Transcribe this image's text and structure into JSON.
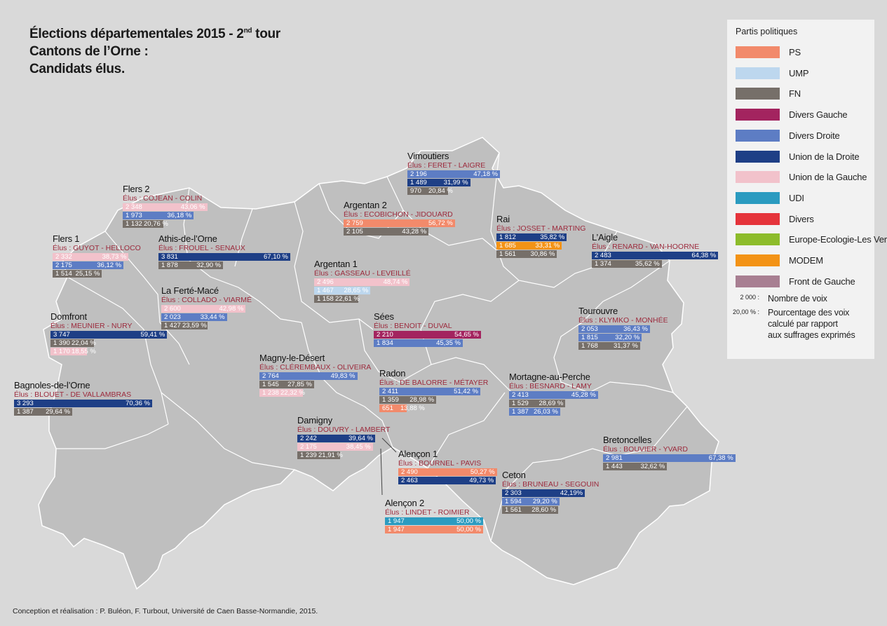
{
  "title": {
    "line1_pre": "Élections départementales 2015 - 2",
    "line1_sup": "nd",
    "line1_post": " tour",
    "line2": "Cantons de l’Orne :",
    "line3": "Candidats élus."
  },
  "credits": "Conception et réalisation : P. Buléon, F. Turbout, Université de Caen Basse-Normandie, 2015.",
  "legend": {
    "title": "Partis politiques",
    "parties": [
      {
        "key": "PS",
        "label": "PS",
        "color": "#f28a6b"
      },
      {
        "key": "UMP",
        "label": "UMP",
        "color": "#bdd7ee"
      },
      {
        "key": "FN",
        "label": "FN",
        "color": "#766f69"
      },
      {
        "key": "DVG",
        "label": "Divers Gauche",
        "color": "#a3245f"
      },
      {
        "key": "DVD",
        "label": "Divers Droite",
        "color": "#5d7dc4"
      },
      {
        "key": "UD",
        "label": "Union de la Droite",
        "color": "#1e3f86"
      },
      {
        "key": "UG",
        "label": "Union de la Gauche",
        "color": "#f2c2cb"
      },
      {
        "key": "UDI",
        "label": "UDI",
        "color": "#2b9bc0"
      },
      {
        "key": "DIV",
        "label": "Divers",
        "color": "#e5343b"
      },
      {
        "key": "EELV",
        "label": "Europe-Ecologie-Les Verts",
        "color": "#8dbc2b"
      },
      {
        "key": "MODEM",
        "label": "MODEM",
        "color": "#f39316"
      },
      {
        "key": "FG",
        "label": "Front de Gauche",
        "color": "#a87f92"
      }
    ],
    "votes_key": "2 000 :",
    "votes_label": "Nombre de voix",
    "pct_key": "20,00 % :",
    "pct_label_1": "Pourcentage des voix",
    "pct_label_2": "calculé par rapport",
    "pct_label_3": "aux suffrages exprimés"
  },
  "cantons": [
    {
      "id": "vimoutiers",
      "name": "Vimoutiers",
      "elus": "Élus : FERET - LAIGRE",
      "rows": [
        {
          "votes": "2 196",
          "pct": "47,18 %",
          "value": 47.18,
          "party": "DVD"
        },
        {
          "votes": "1 489",
          "pct": "31,99 %",
          "value": 31.99,
          "party": "UD"
        },
        {
          "votes": "970",
          "pct": "20,84 %",
          "value": 20.84,
          "party": "FN"
        }
      ]
    },
    {
      "id": "argentan-2",
      "name": "Argentan 2",
      "elus": "Élus : ECOBICHON - JIDOUARD",
      "rows": [
        {
          "votes": "2 759",
          "pct": "56,72 %",
          "value": 56.72,
          "party": "PS"
        },
        {
          "votes": "2 105",
          "pct": "43,28 %",
          "value": 43.28,
          "party": "FN"
        }
      ]
    },
    {
      "id": "flers-2",
      "name": "Flers 2",
      "elus": "Élus : COJEAN - COLIN",
      "rows": [
        {
          "votes": "2 348",
          "pct": "43,06 %",
          "value": 43.06,
          "party": "UG"
        },
        {
          "votes": "1 973",
          "pct": "36,18 %",
          "value": 36.18,
          "party": "DVD"
        },
        {
          "votes": "1 132",
          "pct": "20,76 %",
          "value": 20.76,
          "party": "FN"
        }
      ]
    },
    {
      "id": "rai",
      "name": "Rai",
      "elus": "Élus : JOSSET - MARTING",
      "rows": [
        {
          "votes": "1 812",
          "pct": "35,82 %",
          "value": 35.82,
          "party": "UD"
        },
        {
          "votes": "1 685",
          "pct": "33,31 %",
          "value": 33.31,
          "party": "MODEM"
        },
        {
          "votes": "1 561",
          "pct": "30,86 %",
          "value": 30.86,
          "party": "FN"
        }
      ]
    },
    {
      "id": "laigle",
      "name": "L’Aigle",
      "elus": "Élus : RENARD - VAN-HOORNE",
      "rows": [
        {
          "votes": "2 483",
          "pct": "64,38 %",
          "value": 64.38,
          "party": "UD"
        },
        {
          "votes": "1 374",
          "pct": "35,62 %",
          "value": 35.62,
          "party": "FN"
        }
      ]
    },
    {
      "id": "flers-1",
      "name": "Flers 1",
      "elus": "Élus : GUYOT - HELLOCO",
      "rows": [
        {
          "votes": "2 332",
          "pct": "38,73 %",
          "value": 38.73,
          "party": "UG"
        },
        {
          "votes": "2 175",
          "pct": "36,12 %",
          "value": 36.12,
          "party": "DVD"
        },
        {
          "votes": "1 514",
          "pct": "25,15 %",
          "value": 25.15,
          "party": "FN"
        }
      ]
    },
    {
      "id": "athis",
      "name": "Athis-de-l’Orne",
      "elus": "Élus : FROUEL - SENAUX",
      "rows": [
        {
          "votes": "3 831",
          "pct": "67,10 %",
          "value": 67.1,
          "party": "UD"
        },
        {
          "votes": "1 878",
          "pct": "32,90 %",
          "value": 32.9,
          "party": "FN"
        }
      ]
    },
    {
      "id": "argentan-1",
      "name": "Argentan 1",
      "elus": "Élus : GASSEAU - LEVEILLÉ",
      "rows": [
        {
          "votes": "2 496",
          "pct": "48,74 %",
          "value": 48.74,
          "party": "UG"
        },
        {
          "votes": "1 467",
          "pct": "28,65 %",
          "value": 28.65,
          "party": "UMP"
        },
        {
          "votes": "1 158",
          "pct": "22,61 %",
          "value": 22.61,
          "party": "FN"
        }
      ]
    },
    {
      "id": "ferte-mace",
      "name": "La Ferté-Macé",
      "elus": "Élus : COLLADO - VIARMÉ",
      "rows": [
        {
          "votes": "2 600",
          "pct": "42,98 %",
          "value": 42.98,
          "party": "UG"
        },
        {
          "votes": "2 023",
          "pct": "33,44 %",
          "value": 33.44,
          "party": "DVD"
        },
        {
          "votes": "1 427",
          "pct": "23,59 %",
          "value": 23.59,
          "party": "FN"
        }
      ]
    },
    {
      "id": "tourouvre",
      "name": "Tourouvre",
      "elus": "Élus : KLYMKO - MONHÉE",
      "rows": [
        {
          "votes": "2 053",
          "pct": "36,43 %",
          "value": 36.43,
          "party": "DVD"
        },
        {
          "votes": "1 815",
          "pct": "32,20 %",
          "value": 32.2,
          "party": "DVD"
        },
        {
          "votes": "1 768",
          "pct": "31,37 %",
          "value": 31.37,
          "party": "FN"
        }
      ]
    },
    {
      "id": "domfront",
      "name": "Domfront",
      "elus": "Élus : MEUNIER - NURY",
      "rows": [
        {
          "votes": "3 747",
          "pct": "59,41 %",
          "value": 59.41,
          "party": "UD"
        },
        {
          "votes": "1 390",
          "pct": "22,04 %",
          "value": 22.04,
          "party": "FN"
        },
        {
          "votes": "1 170",
          "pct": "18,55 %",
          "value": 18.55,
          "party": "UG"
        }
      ]
    },
    {
      "id": "sees",
      "name": "Sées",
      "elus": "Élus : BENOIT - DUVAL",
      "rows": [
        {
          "votes": "2 210",
          "pct": "54,65 %",
          "value": 54.65,
          "party": "DVG"
        },
        {
          "votes": "1 834",
          "pct": "45,35 %",
          "value": 45.35,
          "party": "DVD"
        }
      ]
    },
    {
      "id": "magny",
      "name": "Magny-le-Désert",
      "elus": "Élus : CLÉREMBAUX - OLIVEIRA",
      "rows": [
        {
          "votes": "2 764",
          "pct": "49,83 %",
          "value": 49.83,
          "party": "DVD"
        },
        {
          "votes": "1 545",
          "pct": "27,85 %",
          "value": 27.85,
          "party": "FN"
        },
        {
          "votes": "1 238",
          "pct": "22,32 %",
          "value": 22.32,
          "party": "UG"
        }
      ]
    },
    {
      "id": "radon",
      "name": "Radon",
      "elus": "Élus : DE BALORRE - MÉTAYER",
      "rows": [
        {
          "votes": "2 411",
          "pct": "51,42 %",
          "value": 51.42,
          "party": "DVD"
        },
        {
          "votes": "1 359",
          "pct": "28,98 %",
          "value": 28.98,
          "party": "FN"
        },
        {
          "votes": "651",
          "pct": "13,88 %",
          "value": 13.88,
          "party": "PS"
        }
      ]
    },
    {
      "id": "mortagne",
      "name": "Mortagne-au-Perche",
      "elus": "Élus : BESNARD - LAMY",
      "rows": [
        {
          "votes": "2 413",
          "pct": "45,28 %",
          "value": 45.28,
          "party": "DVD"
        },
        {
          "votes": "1 529",
          "pct": "28,69 %",
          "value": 28.69,
          "party": "FN"
        },
        {
          "votes": "1 387",
          "pct": "26,03 %",
          "value": 26.03,
          "party": "DVD"
        }
      ]
    },
    {
      "id": "bagnoles",
      "name": "Bagnoles-de-l’Orne",
      "elus": "Élus : BLOUET - DE VALLAMBRAS",
      "rows": [
        {
          "votes": "3 293",
          "pct": "70,36 %",
          "value": 70.36,
          "party": "UD"
        },
        {
          "votes": "1 387",
          "pct": "29,64 %",
          "value": 29.64,
          "party": "FN"
        }
      ]
    },
    {
      "id": "damigny",
      "name": "Damigny",
      "elus": "Élus : DOUVRY - LAMBERT",
      "rows": [
        {
          "votes": "2 242",
          "pct": "39,64 %",
          "value": 39.64,
          "party": "UD"
        },
        {
          "votes": "2 175",
          "pct": "38,45 %",
          "value": 38.45,
          "party": "UG"
        },
        {
          "votes": "1 239",
          "pct": "21,91 %",
          "value": 21.91,
          "party": "FN"
        }
      ]
    },
    {
      "id": "bretoncelles",
      "name": "Bretoncelles",
      "elus": "Élus : BOUVIER - YVARD",
      "rows": [
        {
          "votes": "2 981",
          "pct": "67,38 %",
          "value": 67.38,
          "party": "DVD"
        },
        {
          "votes": "1 443",
          "pct": "32,62 %",
          "value": 32.62,
          "party": "FN"
        }
      ]
    },
    {
      "id": "alencon-1",
      "name": "Alençon 1",
      "elus": "Élus : BOURNEL - PAVIS",
      "rows": [
        {
          "votes": "2 490",
          "pct": "50,27 %",
          "value": 50.27,
          "party": "PS"
        },
        {
          "votes": "2 463",
          "pct": "49,73 %",
          "value": 49.73,
          "party": "UD"
        }
      ]
    },
    {
      "id": "ceton",
      "name": "Ceton",
      "elus": "Élus : BRUNEAU - SEGOUIN",
      "rows": [
        {
          "votes": "2 303",
          "pct": "42,19%",
          "value": 42.19,
          "party": "UD"
        },
        {
          "votes": "1 594",
          "pct": "29,20 %",
          "value": 29.2,
          "party": "DVD"
        },
        {
          "votes": "1 561",
          "pct": "28,60 %",
          "value": 28.6,
          "party": "FN"
        }
      ]
    },
    {
      "id": "alencon-2",
      "name": "Alençon 2",
      "elus": "Élus : LINDET - ROIMIER",
      "rows": [
        {
          "votes": "1 947",
          "pct": "50,00 %",
          "value": 50.0,
          "party": "UDI"
        },
        {
          "votes": "1 947",
          "pct": "50,00 %",
          "value": 50.0,
          "party": "PS"
        }
      ]
    }
  ]
}
